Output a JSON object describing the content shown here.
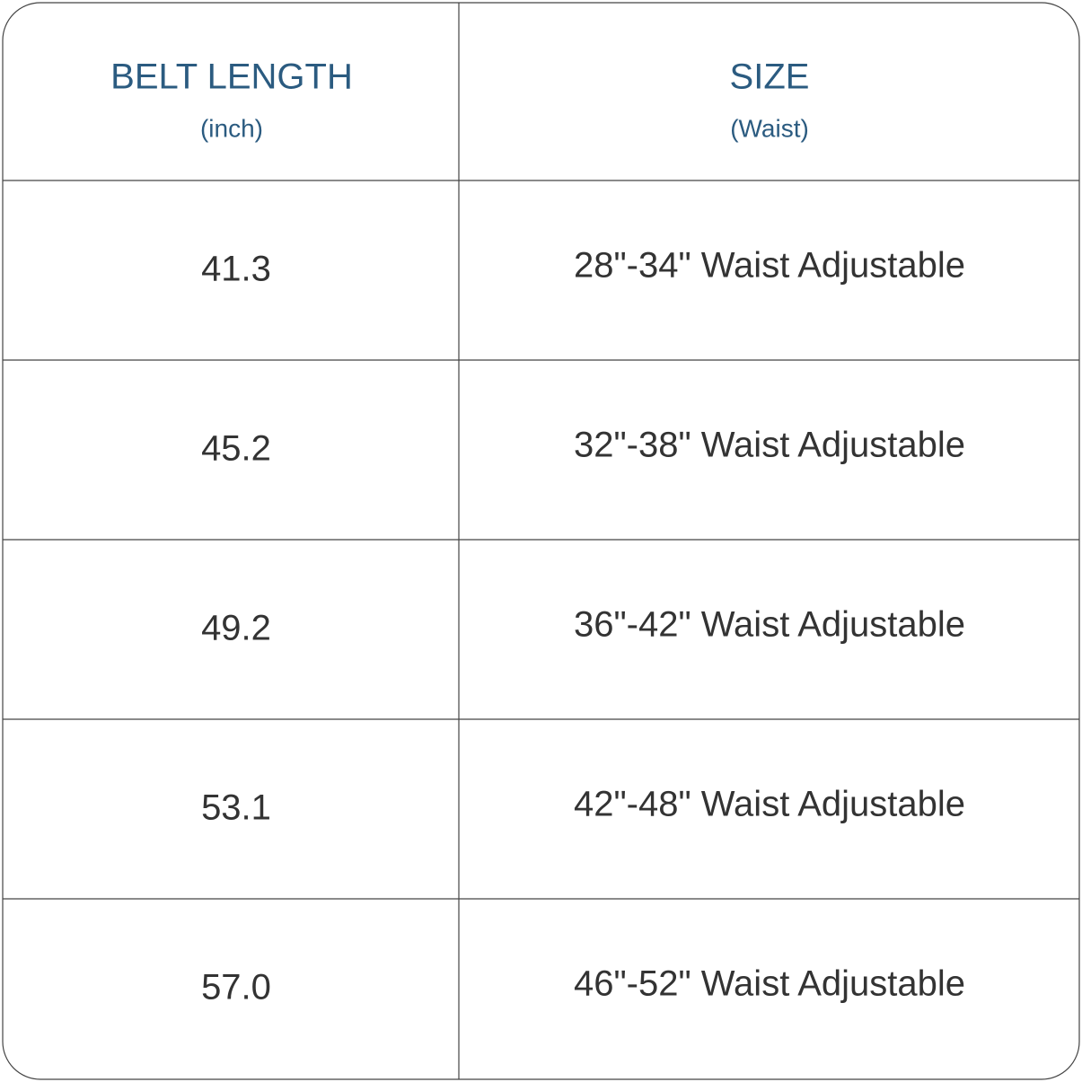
{
  "table": {
    "header": [
      {
        "title": "BELT LENGTH",
        "subtitle": "(inch)"
      },
      {
        "title": "SIZE",
        "subtitle": "(Waist)"
      }
    ],
    "rows": [
      [
        "41.3",
        "28\"-34\" Waist Adjustable"
      ],
      [
        "45.2",
        "32\"-38\" Waist Adjustable"
      ],
      [
        "49.2",
        "36\"-42\" Waist Adjustable"
      ],
      [
        "53.1",
        "42\"-48\" Waist Adjustable"
      ],
      [
        "57.0",
        "46\"-52\" Waist Adjustable"
      ]
    ]
  }
}
